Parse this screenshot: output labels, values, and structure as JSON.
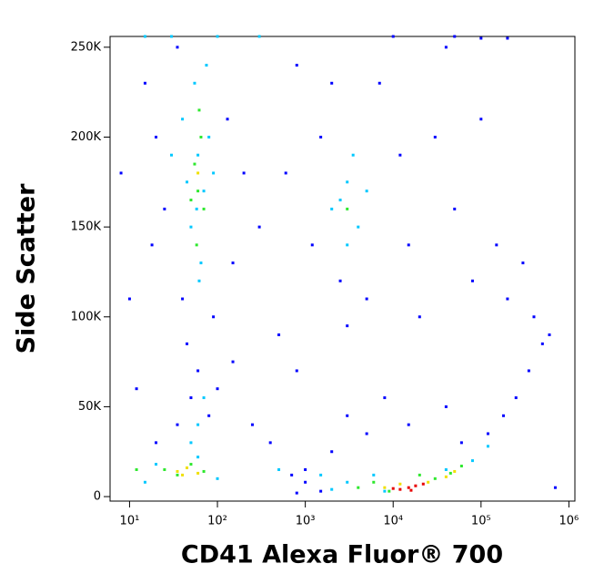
{
  "chart_data": {
    "type": "scatter",
    "x_label": "CD41 Alexa Fluor® 700",
    "y_label": "Side Scatter",
    "xscale": "log",
    "xlim": [
      6,
      1170000
    ],
    "ylim": [
      -2500,
      256000
    ],
    "xticks": [
      {
        "value": 10,
        "label": "10¹"
      },
      {
        "value": 100,
        "label": "10²"
      },
      {
        "value": 1000,
        "label": "10³"
      },
      {
        "value": 10000,
        "label": "10⁴"
      },
      {
        "value": 100000,
        "label": "10⁵"
      },
      {
        "value": 1000000,
        "label": "10⁶"
      }
    ],
    "yticks": [
      0,
      {
        "value": 50000,
        "label": "50K"
      },
      {
        "value": 100000,
        "label": "100K"
      },
      {
        "value": 150000,
        "label": "150K"
      },
      {
        "value": 200000,
        "label": "200K"
      },
      {
        "value": 250000,
        "label": "250K"
      }
    ],
    "series": [
      {
        "color": "#0000ff",
        "x": [
          15,
          20,
          25,
          18,
          35,
          40,
          90,
          150,
          130,
          200,
          300,
          500,
          800,
          250,
          400,
          1000,
          700,
          1200,
          1500,
          2000,
          2500,
          3000,
          5000,
          7000,
          12000,
          15000,
          20000,
          30000,
          50000,
          80000,
          100000,
          150000,
          200000,
          300000,
          400000,
          500000,
          350000,
          250000,
          180000,
          120000,
          3000,
          5000,
          8000,
          15000,
          40000,
          60000,
          2000,
          1000,
          1500,
          800,
          50,
          80,
          35,
          60,
          100,
          20,
          12,
          10,
          8,
          45,
          150,
          600,
          800,
          200000,
          100000,
          40000,
          10000,
          50000,
          700000,
          600000
        ],
        "values": [
          230000,
          200000,
          160000,
          140000,
          250000,
          110000,
          100000,
          130000,
          210000,
          180000,
          150000,
          90000,
          70000,
          40000,
          30000,
          15000,
          12000,
          140000,
          200000,
          230000,
          120000,
          95000,
          110000,
          230000,
          190000,
          140000,
          100000,
          200000,
          160000,
          120000,
          210000,
          140000,
          110000,
          130000,
          100000,
          85000,
          70000,
          55000,
          45000,
          35000,
          45000,
          35000,
          55000,
          40000,
          50000,
          30000,
          25000,
          8000,
          3000,
          2000,
          55000,
          45000,
          40000,
          70000,
          60000,
          30000,
          60000,
          110000,
          180000,
          85000,
          75000,
          180000,
          240000,
          255000,
          255000,
          250000,
          256000,
          256000,
          5000,
          90000
        ]
      },
      {
        "color": "#00c8ff",
        "x": [
          40,
          55,
          60,
          70,
          50,
          65,
          80,
          45,
          75,
          58,
          30,
          90,
          62,
          2500,
          3000,
          4000,
          3500,
          2000,
          5000,
          3000,
          15,
          30,
          100,
          300,
          20,
          60,
          100,
          15,
          500,
          1500,
          3000,
          6000,
          40000,
          80000,
          120000,
          60,
          70,
          50,
          2000,
          8000
        ],
        "values": [
          210000,
          230000,
          190000,
          170000,
          150000,
          130000,
          200000,
          175000,
          240000,
          160000,
          190000,
          180000,
          120000,
          165000,
          175000,
          150000,
          190000,
          160000,
          170000,
          140000,
          256000,
          256000,
          256000,
          256000,
          18000,
          22000,
          10000,
          8000,
          15000,
          12000,
          8000,
          12000,
          15000,
          20000,
          28000,
          40000,
          55000,
          30000,
          4000,
          3000
        ]
      },
      {
        "color": "#2ee82e",
        "x": [
          55,
          60,
          65,
          50,
          62,
          25,
          35,
          50,
          70,
          12,
          4000,
          6000,
          9000,
          30000,
          45000,
          60000,
          20000,
          70,
          58,
          3000
        ],
        "values": [
          185000,
          170000,
          200000,
          165000,
          215000,
          15000,
          12000,
          18000,
          14000,
          15000,
          5000,
          8000,
          3000,
          10000,
          13000,
          17000,
          12000,
          160000,
          140000,
          160000
        ]
      },
      {
        "color": "#f0e000",
        "x": [
          35,
          45,
          60,
          8000,
          12000,
          25000,
          40000,
          60,
          50000,
          40
        ],
        "values": [
          14000,
          16000,
          13000,
          5000,
          7000,
          8000,
          11000,
          180000,
          14000,
          12000
        ]
      },
      {
        "color": "#e80000",
        "x": [
          12000,
          15000,
          18000,
          22000,
          10000,
          16000
        ],
        "values": [
          4000,
          5000,
          6000,
          7000,
          4500,
          3500
        ]
      }
    ]
  }
}
